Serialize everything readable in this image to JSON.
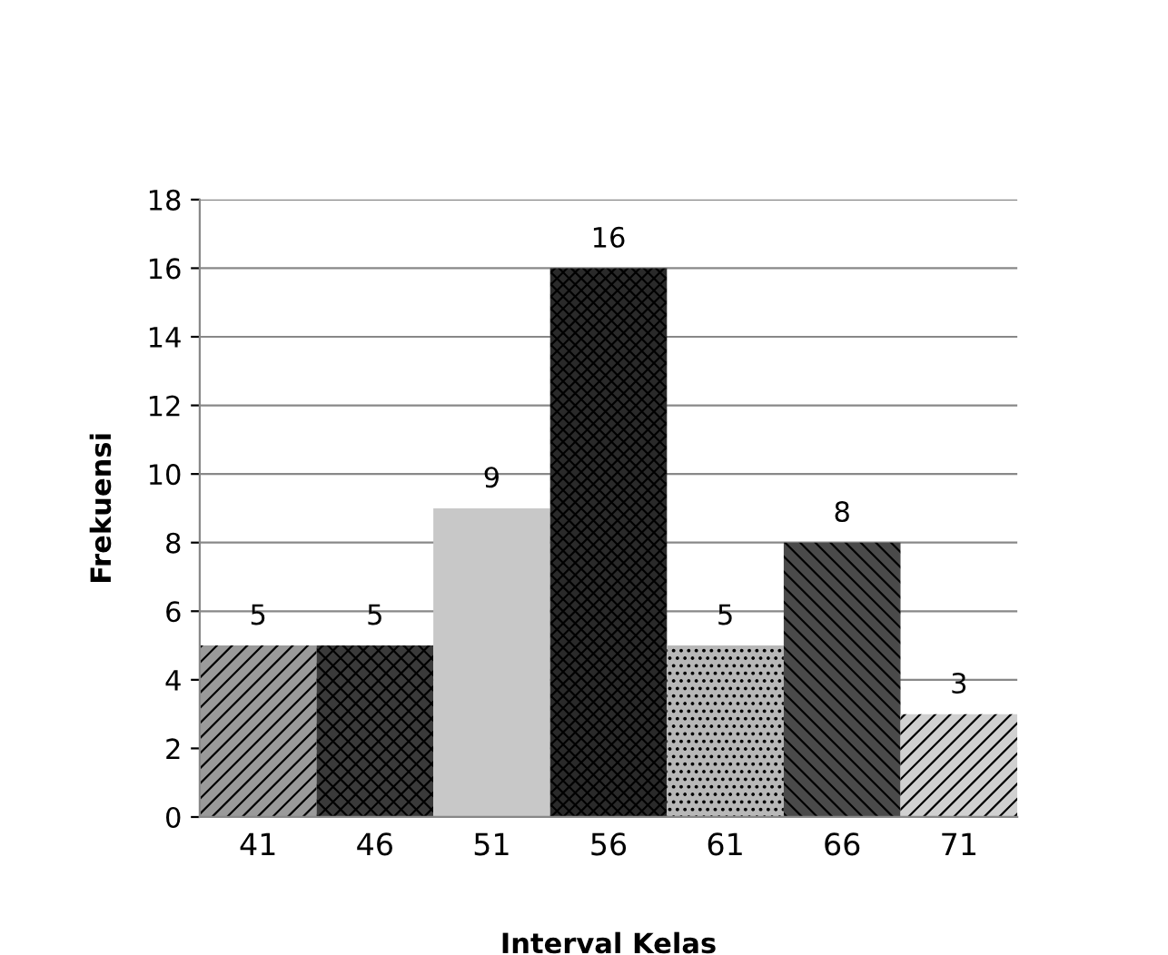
{
  "chart_data": {
    "type": "bar",
    "xlabel": "Interval Kelas",
    "ylabel": "Frekuensi",
    "categories": [
      "41",
      "46",
      "51",
      "56",
      "61",
      "66",
      "71"
    ],
    "values": [
      5,
      5,
      9,
      16,
      5,
      8,
      3
    ],
    "colors": [
      "#9a9a9a",
      "#3a3a3a",
      "#c8c8c8",
      "#2a2a2a",
      "#b8b8b8",
      "#4a4a4a",
      "#d0d0d0"
    ],
    "ylim": [
      0,
      18
    ],
    "yticks": [
      0,
      2,
      4,
      6,
      8,
      10,
      12,
      14,
      16,
      18
    ],
    "grid": "y",
    "data_labels": true,
    "legend": false
  }
}
